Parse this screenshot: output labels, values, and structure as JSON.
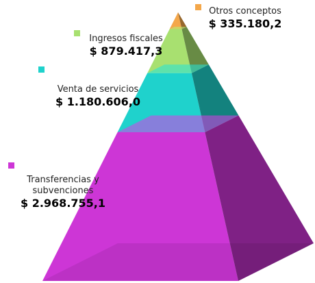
{
  "chart_data": {
    "type": "pyramid",
    "categories": [
      "Otros conceptos",
      "Ingresos fiscales",
      "Venta de servicios",
      "Transferencias y subvenciones"
    ],
    "values": [
      335180.2,
      879417.3,
      1180606.0,
      2968755.1
    ],
    "value_labels": [
      "$ 335.180,2",
      "$ 879.417,3",
      "$ 1.180.606,0",
      "$ 2.968.755,1"
    ],
    "colors": [
      "#f4a74a",
      "#a8e070",
      "#1fd2cc",
      "#cd36d6"
    ]
  }
}
